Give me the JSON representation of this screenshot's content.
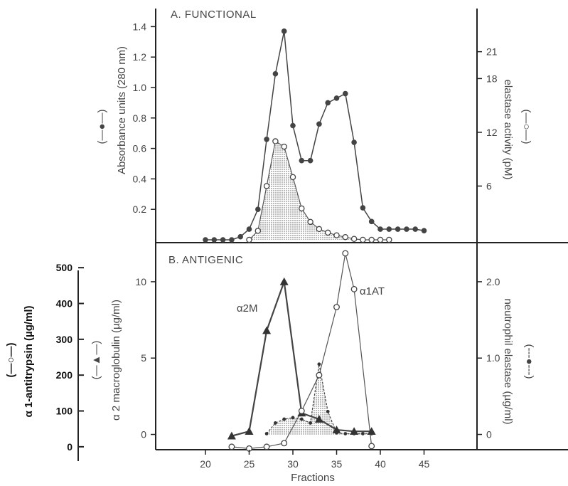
{
  "chart_data": [
    {
      "type": "line",
      "panel_label": "A. FUNCTIONAL",
      "xlabel": "Fractions",
      "x_ticks": [
        "20",
        "25",
        "30",
        "35",
        "40",
        "45"
      ],
      "y_left": {
        "label": "Absorbance units (280 nm)",
        "marker_legend": "(—●—)",
        "ticks": [
          "0.2",
          "0.4",
          "0.6",
          "0.8",
          "1.0",
          "1.2",
          "1.4"
        ],
        "range": [
          0,
          1.5
        ]
      },
      "y_right": {
        "label": "elastase activity (pM)",
        "marker_legend": "(—○—)",
        "ticks": [
          "6",
          "12",
          "18",
          "21"
        ],
        "range": [
          0,
          25.5
        ]
      },
      "series": [
        {
          "axis": "left",
          "marker": "filled-circle",
          "x": [
            20,
            21,
            22,
            23,
            24,
            25,
            26,
            27,
            28,
            29,
            30,
            31,
            32,
            33,
            34,
            35,
            36,
            37,
            38,
            39,
            40,
            41,
            42,
            43,
            44,
            45
          ],
          "y": [
            0,
            0,
            0,
            0,
            0.02,
            0.07,
            0.2,
            0.66,
            1.09,
            1.37,
            0.75,
            0.52,
            0.52,
            0.76,
            0.9,
            0.93,
            0.96,
            0.64,
            0.21,
            0.12,
            0.07,
            0.07,
            0.07,
            0.07,
            0.07,
            0.06
          ]
        },
        {
          "axis": "right",
          "marker": "open-circle",
          "shaded": true,
          "x": [
            25,
            26,
            27,
            28,
            29,
            30,
            31,
            32,
            33,
            34,
            35,
            36,
            37,
            38,
            39,
            40,
            41
          ],
          "y": [
            0,
            1,
            6,
            11,
            10.4,
            7,
            3.5,
            2,
            1.2,
            0.8,
            0.5,
            0.3,
            0.1,
            0,
            0,
            0,
            0
          ]
        }
      ]
    },
    {
      "type": "line",
      "panel_label": "B. ANTIGENIC",
      "xlabel": "Fractions",
      "x_ticks": [
        "20",
        "25",
        "30",
        "35",
        "40",
        "45"
      ],
      "y_left_outer": {
        "label": "α 1-antitrypsin (µg/ml)",
        "marker_legend": "(—○—)",
        "ticks": [
          "0",
          "100",
          "200",
          "300",
          "400",
          "500"
        ],
        "range": [
          -40,
          550
        ]
      },
      "y_left": {
        "label": "α 2 macroglobulin (µg/ml)",
        "marker_legend": "(—▲—)",
        "ticks": [
          "0",
          "5",
          "10"
        ],
        "range": [
          -1,
          12
        ]
      },
      "y_right": {
        "label": "neutrophil elastase (µg/ml)",
        "marker_legend": "(---●---)",
        "ticks": [
          "0",
          "1.0",
          "2.0"
        ],
        "range": [
          -0.2,
          2.4
        ]
      },
      "series": [
        {
          "name": "α2M",
          "axis": "left",
          "marker": "filled-triangle",
          "x": [
            23,
            25,
            27,
            29,
            31,
            33,
            35,
            37,
            39
          ],
          "y": [
            -0.1,
            0.2,
            6.8,
            10,
            1.4,
            1.0,
            0.3,
            0.2,
            0.2
          ]
        },
        {
          "name": "α1AT",
          "axis": "left-outer",
          "marker": "open-circle",
          "x": [
            23,
            25,
            27,
            29,
            31,
            33,
            35,
            36,
            37,
            39
          ],
          "y": [
            0,
            -5,
            0,
            10,
            100,
            200,
            390,
            540,
            440,
            2
          ]
        },
        {
          "axis": "right",
          "marker": "small-filled-circle-dashed",
          "shaded": true,
          "x": [
            27,
            28,
            29,
            30,
            31,
            32,
            33,
            34,
            35,
            36,
            37,
            38,
            39
          ],
          "y": [
            0.01,
            0.15,
            0.2,
            0.22,
            0.2,
            0.15,
            0.92,
            0.3,
            0.02,
            0.01,
            0.01,
            0.01,
            0.01
          ]
        }
      ]
    }
  ]
}
